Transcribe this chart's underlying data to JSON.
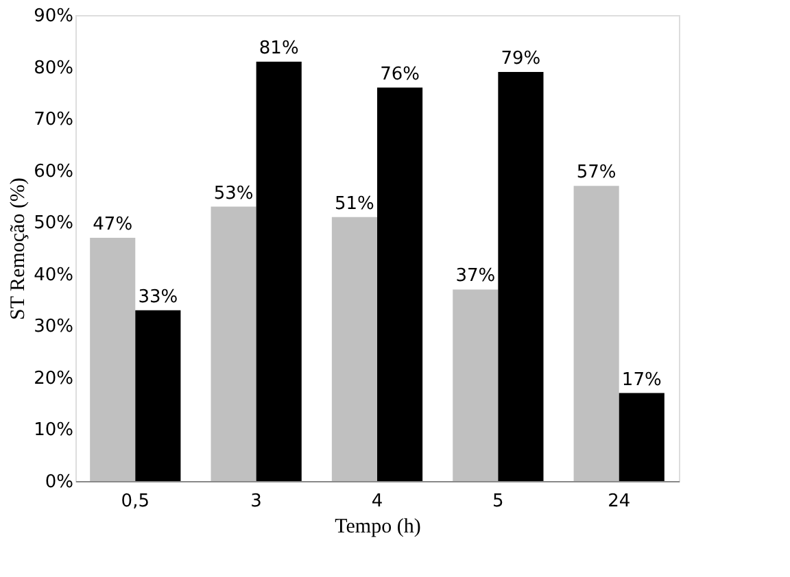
{
  "chart_data": {
    "type": "bar",
    "xlabel": "Tempo (h)",
    "ylabel": "ST Remoção (%)",
    "categories": [
      "0,5",
      "3",
      "4",
      "5",
      "24"
    ],
    "series": [
      {
        "color": "#c0c0c0",
        "values": [
          47,
          53,
          51,
          37,
          57
        ],
        "value_labels": [
          "47%",
          "53%",
          "51%",
          "37%",
          "57%"
        ]
      },
      {
        "color": "#000000",
        "values": [
          33,
          81,
          76,
          79,
          17
        ],
        "value_labels": [
          "33%",
          "81%",
          "76%",
          "79%",
          "17%"
        ]
      }
    ],
    "ylim": [
      0,
      90
    ],
    "yticks": [
      {
        "value": 0,
        "label": "0%"
      },
      {
        "value": 10,
        "label": "10%"
      },
      {
        "value": 20,
        "label": "20%"
      },
      {
        "value": 30,
        "label": "30%"
      },
      {
        "value": 40,
        "label": "40%"
      },
      {
        "value": 50,
        "label": "50%"
      },
      {
        "value": 60,
        "label": "60%"
      },
      {
        "value": 70,
        "label": "70%"
      },
      {
        "value": 80,
        "label": "80%"
      },
      {
        "value": 90,
        "label": "90%"
      }
    ],
    "grid": false,
    "legend": false
  }
}
